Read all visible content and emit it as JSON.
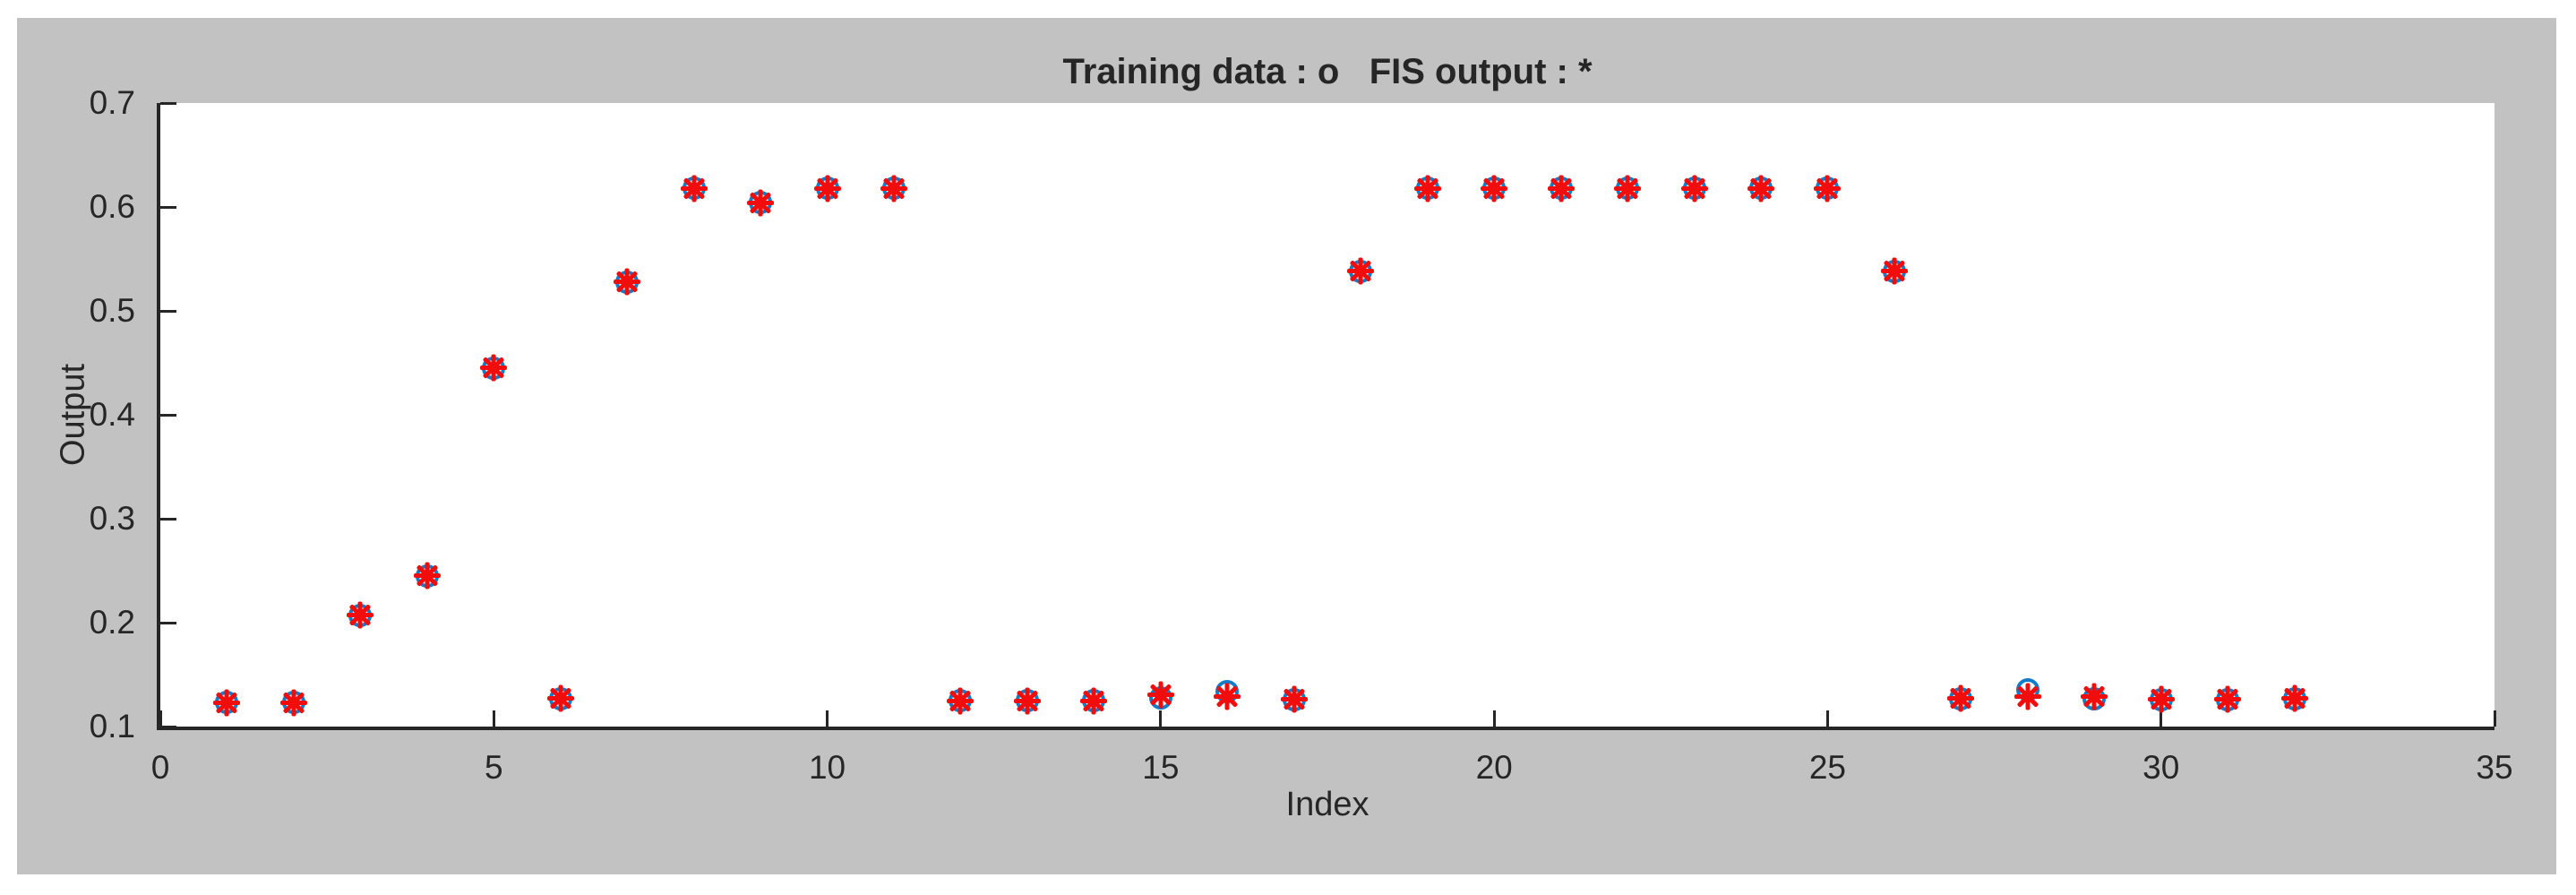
{
  "figure": {
    "background": "#c2c2c2",
    "plot_background": "#ffffff",
    "axis_color": "#262626",
    "text_color": "#262626"
  },
  "chart_data": {
    "type": "scatter",
    "title": "Training data : o   FIS output : *",
    "xlabel": "Index",
    "ylabel": "Output",
    "xlim": [
      0,
      35
    ],
    "ylim": [
      0.1,
      0.7
    ],
    "grid": false,
    "legend_position": "encoded-in-title",
    "x_ticks": [
      0,
      5,
      10,
      15,
      20,
      25,
      30,
      35
    ],
    "x_tick_labels": [
      "0",
      "5",
      "10",
      "15",
      "20",
      "25",
      "30",
      "35"
    ],
    "y_ticks": [
      0.1,
      0.2,
      0.3,
      0.4,
      0.5,
      0.6,
      0.7
    ],
    "y_tick_labels": [
      "0.1",
      "0.2",
      "0.3",
      "0.4",
      "0.5",
      "0.6",
      "0.7"
    ],
    "x": [
      1,
      2,
      3,
      4,
      5,
      6,
      7,
      8,
      9,
      10,
      11,
      12,
      13,
      14,
      15,
      16,
      17,
      18,
      19,
      20,
      21,
      22,
      23,
      24,
      25,
      26,
      27,
      28,
      29,
      30,
      31,
      32
    ],
    "series": [
      {
        "name": "Training data",
        "marker": "o",
        "color": "#107dca",
        "values": [
          0.123,
          0.123,
          0.207,
          0.245,
          0.445,
          0.127,
          0.528,
          0.618,
          0.604,
          0.618,
          0.618,
          0.125,
          0.125,
          0.125,
          0.128,
          0.134,
          0.126,
          0.538,
          0.618,
          0.618,
          0.618,
          0.618,
          0.618,
          0.618,
          0.618,
          0.538,
          0.127,
          0.135,
          0.127,
          0.126,
          0.126,
          0.127
        ]
      },
      {
        "name": "FIS output",
        "marker": "*",
        "color": "#f20d0d",
        "values": [
          0.123,
          0.123,
          0.207,
          0.245,
          0.445,
          0.127,
          0.528,
          0.618,
          0.604,
          0.618,
          0.618,
          0.125,
          0.125,
          0.125,
          0.131,
          0.129,
          0.126,
          0.538,
          0.618,
          0.618,
          0.618,
          0.618,
          0.618,
          0.618,
          0.618,
          0.538,
          0.127,
          0.129,
          0.129,
          0.126,
          0.126,
          0.127
        ]
      }
    ]
  }
}
